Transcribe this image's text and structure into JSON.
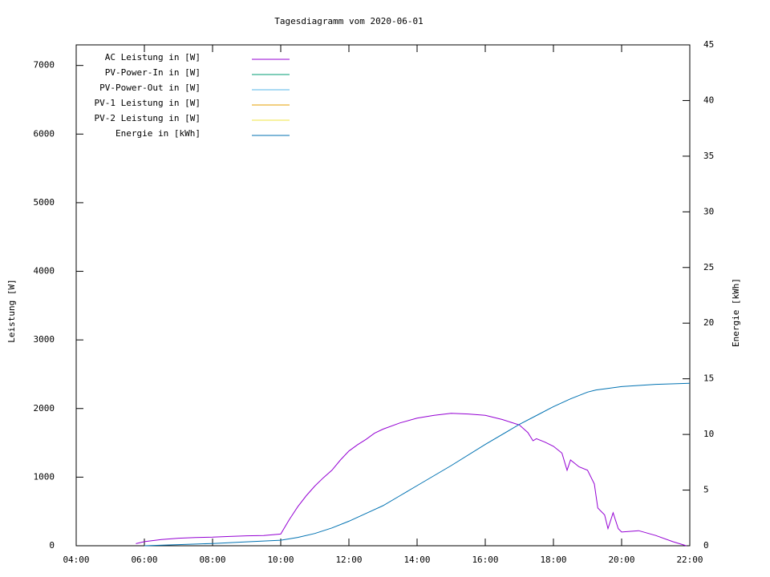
{
  "chart_data": {
    "type": "line",
    "title": "Tagesdiagramm vom 2020-06-01",
    "ylabel": "Leistung [W]",
    "y2label": "Energie [kWh]",
    "xlim": [
      4,
      22
    ],
    "xticks": [
      {
        "value": 4,
        "label": "04:00"
      },
      {
        "value": 6,
        "label": "06:00"
      },
      {
        "value": 8,
        "label": "08:00"
      },
      {
        "value": 10,
        "label": "10:00"
      },
      {
        "value": 12,
        "label": "12:00"
      },
      {
        "value": 14,
        "label": "14:00"
      },
      {
        "value": 16,
        "label": "16:00"
      },
      {
        "value": 18,
        "label": "18:00"
      },
      {
        "value": 20,
        "label": "20:00"
      },
      {
        "value": 22,
        "label": "22:00"
      }
    ],
    "ylim": [
      0,
      7300
    ],
    "yticks": [
      0,
      1000,
      2000,
      3000,
      4000,
      5000,
      6000,
      7000
    ],
    "y2lim": [
      0,
      45
    ],
    "y2ticks": [
      0,
      5,
      10,
      15,
      20,
      25,
      30,
      35,
      40,
      45
    ],
    "grid": false,
    "legend": "top-left",
    "series": [
      {
        "name": "AC Leistung in [W]",
        "color": "#9400d3",
        "x": [
          5.75,
          6,
          6.5,
          7,
          7.5,
          8,
          8.5,
          9,
          9.5,
          10,
          10.25,
          10.5,
          10.75,
          11,
          11.25,
          11.5,
          11.75,
          12,
          12.25,
          12.5,
          12.75,
          13,
          13.5,
          14,
          14.5,
          15,
          15.5,
          16,
          16.5,
          17,
          17.25,
          17.4,
          17.5,
          17.75,
          18,
          18.25,
          18.4,
          18.5,
          18.75,
          19,
          19.2,
          19.3,
          19.5,
          19.6,
          19.75,
          19.9,
          20,
          20.5,
          21,
          21.5,
          21.9
        ],
        "values": [
          30,
          60,
          90,
          110,
          120,
          125,
          135,
          145,
          150,
          170,
          380,
          570,
          730,
          870,
          990,
          1100,
          1250,
          1380,
          1470,
          1550,
          1640,
          1700,
          1790,
          1860,
          1900,
          1930,
          1920,
          1900,
          1840,
          1760,
          1650,
          1530,
          1560,
          1510,
          1450,
          1350,
          1100,
          1250,
          1150,
          1100,
          900,
          550,
          450,
          250,
          480,
          250,
          200,
          220,
          150,
          60,
          0
        ]
      },
      {
        "name": "PV-Power-In in [W]",
        "color": "#009e73",
        "x": [],
        "values": []
      },
      {
        "name": "PV-Power-Out in [W]",
        "color": "#56b4e9",
        "x": [],
        "values": []
      },
      {
        "name": "PV-1 Leistung in [W]",
        "color": "#e69f00",
        "x": [],
        "values": []
      },
      {
        "name": "PV-2 Leistung in [W]",
        "color": "#f0e442",
        "x": [],
        "values": []
      },
      {
        "name": "Energie in [kWh]",
        "color": "#0072b2",
        "axis": "y2",
        "x": [
          6,
          7,
          8,
          9,
          10,
          10.5,
          11,
          11.5,
          12,
          12.5,
          13,
          13.5,
          14,
          15,
          16,
          17,
          17.5,
          18,
          18.5,
          19,
          19.25,
          19.5,
          20,
          21,
          22
        ],
        "values": [
          0,
          0.1,
          0.2,
          0.35,
          0.5,
          0.75,
          1.1,
          1.6,
          2.2,
          2.9,
          3.6,
          4.5,
          5.4,
          7.2,
          9.1,
          10.9,
          11.7,
          12.5,
          13.2,
          13.8,
          14.0,
          14.1,
          14.3,
          14.5,
          14.6
        ]
      }
    ]
  }
}
